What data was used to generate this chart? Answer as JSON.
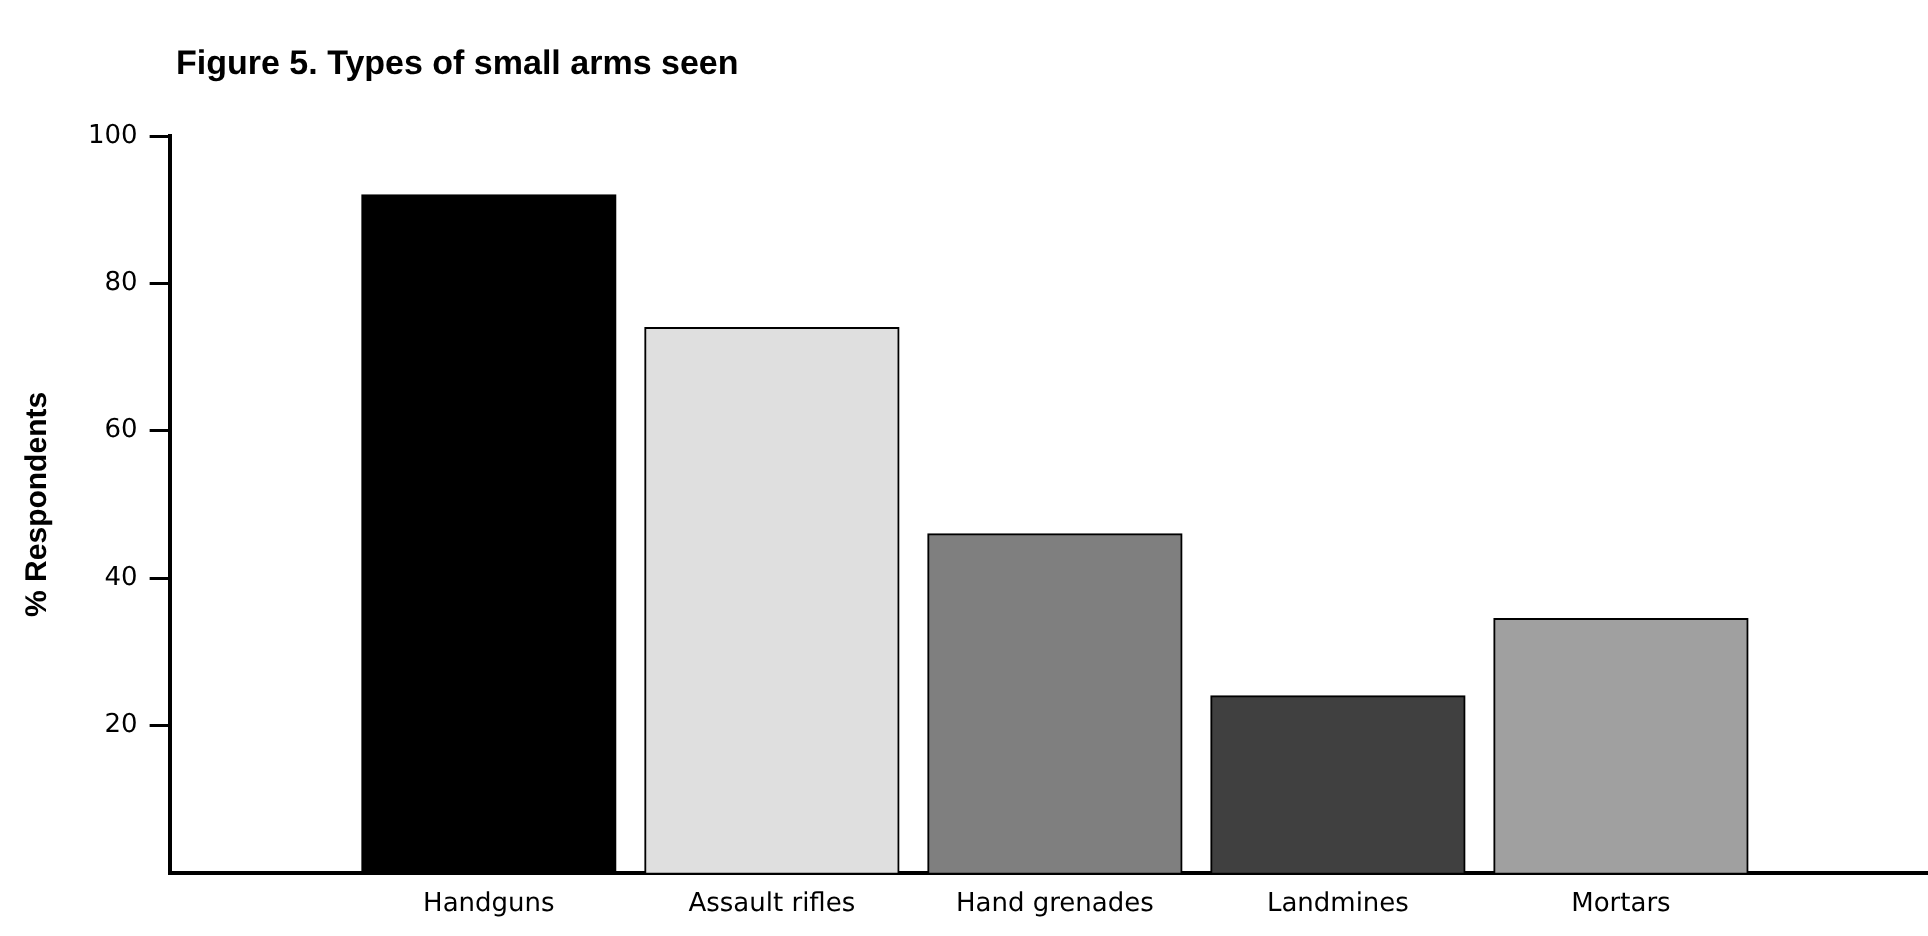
{
  "chart_data": {
    "type": "bar",
    "title": "Figure 5. Types of small arms seen",
    "ylabel": "% Respondents",
    "categories": [
      "Handguns",
      "Assault rifles",
      "Hand grenades",
      "Landmines",
      "Mortars"
    ],
    "values": [
      92,
      74,
      46,
      24,
      34.5
    ],
    "colors": [
      "#000000",
      "#dfdfdf",
      "#7f7f7f",
      "#404040",
      "#a0a0a0"
    ],
    "ylim": [
      0,
      100
    ],
    "yticks": [
      20,
      40,
      60,
      80,
      100
    ],
    "grid": false,
    "legend": false
  }
}
